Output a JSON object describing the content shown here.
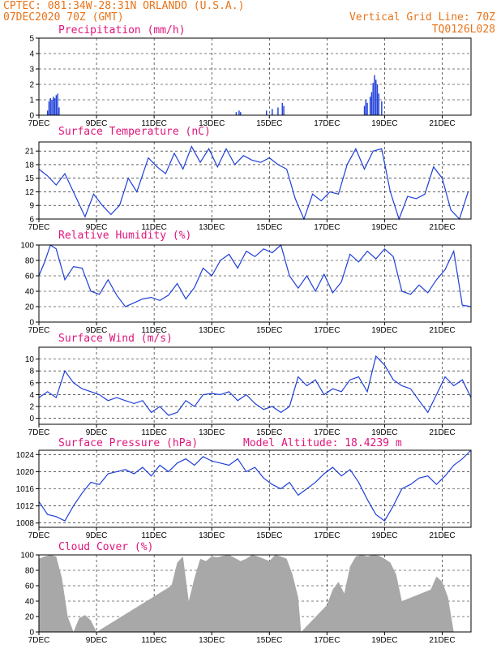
{
  "header": {
    "line1": "CPTEC:   081:34W-28:31N   ORLANDO (U.S.A.)",
    "line2": "07DEC2020 70Z (GMT)",
    "grid_line": "Vertical Grid Line: 70Z",
    "run_id": "TQ0126L028"
  },
  "x_tick_labels": [
    "7DEC",
    "9DEC",
    "11DEC",
    "13DEC",
    "15DEC",
    "17DEC",
    "19DEC",
    "21DEC"
  ],
  "colors": {
    "header": "#e8741a",
    "title": "#e0157a",
    "line": "#1f3fd8",
    "precip_bar": "#1f3fd8",
    "cloud_bar": "#a8a8a8"
  },
  "chart_data": [
    {
      "type": "bar",
      "title": "Precipitation (mm/h)",
      "x_range_days": [
        7,
        22
      ],
      "ylim": [
        0,
        5
      ],
      "y_ticks": [
        "0",
        "1",
        "2",
        "3",
        "4",
        "5"
      ],
      "x": [
        7.3,
        7.35,
        7.4,
        7.45,
        7.5,
        7.55,
        7.6,
        7.65,
        7.7,
        13.85,
        13.95,
        14.0,
        14.9,
        15.1,
        15.3,
        15.45,
        15.5,
        18.3,
        18.35,
        18.4,
        18.5,
        18.55,
        18.6,
        18.65,
        18.7,
        18.75,
        18.8,
        18.9
      ],
      "values": [
        0.3,
        0.9,
        1.1,
        1.0,
        1.2,
        1.1,
        1.3,
        1.4,
        0.5,
        0.2,
        0.3,
        0.2,
        0.3,
        0.4,
        0.5,
        0.8,
        0.6,
        0.6,
        1.0,
        0.8,
        1.2,
        1.5,
        2.1,
        2.6,
        2.3,
        2.0,
        1.4,
        0.9
      ]
    },
    {
      "type": "line",
      "title": "Surface Temperature (nC)",
      "x_range_days": [
        7,
        22
      ],
      "ylim": [
        6,
        23
      ],
      "y_ticks": [
        "6",
        "9",
        "12",
        "15",
        "18",
        "21"
      ],
      "x": [
        7.0,
        7.3,
        7.6,
        7.9,
        8.2,
        8.6,
        8.9,
        9.2,
        9.5,
        9.8,
        10.1,
        10.4,
        10.8,
        11.1,
        11.4,
        11.7,
        12.0,
        12.3,
        12.6,
        12.9,
        13.2,
        13.5,
        13.8,
        14.1,
        14.4,
        14.7,
        15.0,
        15.3,
        15.6,
        15.9,
        16.2,
        16.5,
        16.8,
        17.1,
        17.4,
        17.7,
        18.0,
        18.3,
        18.6,
        18.9,
        19.2,
        19.5,
        19.8,
        20.1,
        20.4,
        20.7,
        21.0,
        21.3,
        21.6,
        21.9
      ],
      "values": [
        17,
        15.5,
        13.5,
        16,
        12,
        6.5,
        11.5,
        9,
        7,
        9,
        15,
        12,
        19.5,
        17.5,
        16,
        20.5,
        17,
        22,
        18.5,
        21.5,
        17.5,
        21.5,
        18,
        20,
        19,
        18.5,
        19.5,
        18,
        17,
        10.5,
        5.5,
        11.5,
        10,
        12,
        11.5,
        18,
        21.5,
        17,
        21,
        21.5,
        12,
        6,
        11,
        10.5,
        11.5,
        17.5,
        15,
        8,
        6,
        12
      ]
    },
    {
      "type": "line",
      "title": "Relative Humidity (%)",
      "x_range_days": [
        7,
        22
      ],
      "ylim": [
        0,
        100
      ],
      "y_ticks": [
        "0",
        "20",
        "40",
        "60",
        "80",
        "100"
      ],
      "x": [
        7.0,
        7.2,
        7.4,
        7.6,
        7.9,
        8.2,
        8.5,
        8.8,
        9.1,
        9.4,
        9.7,
        10.0,
        10.3,
        10.6,
        10.9,
        11.2,
        11.5,
        11.8,
        12.1,
        12.4,
        12.7,
        13.0,
        13.3,
        13.6,
        13.9,
        14.2,
        14.5,
        14.8,
        15.1,
        15.4,
        15.7,
        16.0,
        16.3,
        16.6,
        16.9,
        17.2,
        17.5,
        17.8,
        18.1,
        18.4,
        18.7,
        19.0,
        19.3,
        19.6,
        19.9,
        20.2,
        20.5,
        20.8,
        21.1,
        21.4,
        21.7,
        22.0
      ],
      "values": [
        60,
        78,
        100,
        95,
        55,
        72,
        70,
        40,
        36,
        55,
        35,
        20,
        25,
        30,
        32,
        28,
        35,
        50,
        30,
        45,
        70,
        60,
        80,
        88,
        70,
        92,
        85,
        95,
        90,
        100,
        60,
        44,
        60,
        40,
        62,
        38,
        52,
        88,
        78,
        92,
        82,
        95,
        85,
        40,
        36,
        48,
        38,
        55,
        68,
        92,
        22,
        20
      ]
    },
    {
      "type": "line",
      "title": "Surface Wind (m/s)",
      "x_range_days": [
        7,
        22
      ],
      "ylim": [
        -1,
        12
      ],
      "y_ticks": [
        "0",
        "2",
        "4",
        "6",
        "8",
        "10"
      ],
      "x": [
        7.0,
        7.3,
        7.6,
        7.9,
        8.2,
        8.5,
        8.8,
        9.1,
        9.4,
        9.7,
        10.0,
        10.3,
        10.6,
        10.9,
        11.2,
        11.5,
        11.8,
        12.1,
        12.4,
        12.7,
        13.0,
        13.3,
        13.6,
        13.9,
        14.2,
        14.5,
        14.8,
        15.1,
        15.4,
        15.7,
        16.0,
        16.3,
        16.6,
        16.9,
        17.2,
        17.5,
        17.8,
        18.1,
        18.4,
        18.7,
        19.0,
        19.3,
        19.6,
        19.9,
        20.2,
        20.5,
        20.8,
        21.1,
        21.4,
        21.7,
        22.0
      ],
      "values": [
        3.5,
        4.5,
        3.5,
        8,
        6,
        5,
        4.5,
        4,
        3,
        3.5,
        3,
        2.5,
        3,
        1,
        2,
        0.5,
        1,
        3,
        2,
        4,
        4.2,
        4,
        4.5,
        3,
        4,
        2.5,
        1.5,
        2,
        1,
        2,
        7,
        5.5,
        6.5,
        4,
        5,
        4.5,
        6.5,
        7,
        4.5,
        10.5,
        9,
        6.5,
        5.5,
        5,
        3,
        1,
        4,
        7,
        5.5,
        6.5,
        3.5
      ]
    },
    {
      "type": "line",
      "title": "Surface Pressure (hPa)",
      "annotation": "Model Altitude: 18.4239 m",
      "x_range_days": [
        7,
        22
      ],
      "ylim": [
        1007,
        1025
      ],
      "y_ticks": [
        "1008",
        "1012",
        "1016",
        "1020",
        "1024"
      ],
      "x": [
        7.0,
        7.3,
        7.6,
        7.9,
        8.2,
        8.5,
        8.8,
        9.1,
        9.4,
        9.7,
        10.0,
        10.3,
        10.6,
        10.9,
        11.2,
        11.5,
        11.8,
        12.1,
        12.4,
        12.7,
        13.0,
        13.3,
        13.6,
        13.9,
        14.2,
        14.5,
        14.8,
        15.1,
        15.4,
        15.7,
        16.0,
        16.3,
        16.6,
        16.9,
        17.2,
        17.5,
        17.8,
        18.1,
        18.4,
        18.7,
        19.0,
        19.3,
        19.6,
        19.9,
        20.2,
        20.5,
        20.8,
        21.1,
        21.4,
        21.7,
        22.0
      ],
      "values": [
        1013,
        1010,
        1009.5,
        1008.5,
        1012,
        1015,
        1017.5,
        1017,
        1019.5,
        1020,
        1020.5,
        1019.5,
        1021,
        1019,
        1021.5,
        1020,
        1022,
        1023,
        1021.5,
        1023.5,
        1022.5,
        1022,
        1021.5,
        1023,
        1020,
        1021,
        1018.5,
        1017,
        1016,
        1017.5,
        1014.5,
        1016,
        1017.5,
        1019.5,
        1021,
        1019,
        1020.5,
        1017.5,
        1013.5,
        1010,
        1008.5,
        1012,
        1016,
        1017,
        1018.5,
        1019,
        1017,
        1019,
        1021.5,
        1023,
        1025
      ]
    },
    {
      "type": "area",
      "title": "Cloud Cover (%)",
      "x_range_days": [
        7,
        22
      ],
      "ylim": [
        0,
        100
      ],
      "y_ticks": [
        "0",
        "20",
        "40",
        "60",
        "80",
        "100"
      ],
      "x": [
        7.0,
        7.2,
        7.4,
        7.6,
        7.8,
        8.0,
        8.2,
        8.4,
        8.6,
        8.8,
        9.0,
        11.6,
        11.8,
        12.0,
        12.2,
        12.4,
        12.6,
        12.8,
        13.0,
        13.2,
        13.4,
        13.6,
        13.8,
        14.0,
        14.2,
        14.4,
        14.6,
        14.8,
        15.0,
        15.2,
        15.4,
        15.6,
        15.8,
        16.0,
        16.1,
        17.0,
        17.2,
        17.4,
        17.6,
        17.8,
        18.0,
        18.2,
        18.4,
        18.6,
        18.8,
        19.0,
        19.2,
        19.4,
        19.6,
        20.6,
        20.8,
        21.0,
        21.2,
        21.4
      ],
      "values": [
        95,
        98,
        100,
        98,
        70,
        20,
        0,
        18,
        22,
        15,
        0,
        60,
        90,
        98,
        40,
        70,
        95,
        92,
        98,
        97,
        99,
        100,
        96,
        92,
        95,
        100,
        98,
        95,
        92,
        100,
        98,
        95,
        75,
        45,
        0,
        35,
        55,
        65,
        50,
        85,
        98,
        100,
        98,
        100,
        99,
        95,
        90,
        75,
        40,
        55,
        72,
        65,
        45,
        0
      ]
    }
  ]
}
